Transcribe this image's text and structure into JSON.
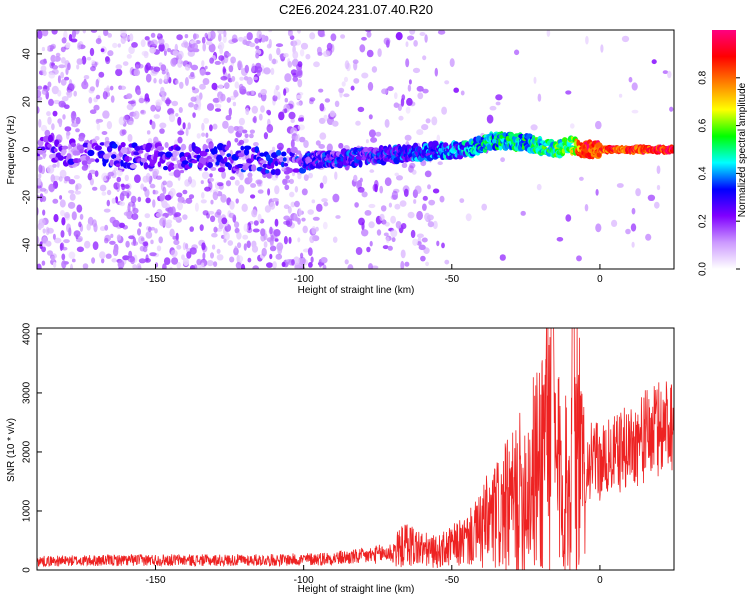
{
  "title": "C2E6.2024.231.07.40.R20",
  "chart_data": [
    {
      "type": "heatmap",
      "xlabel": "Height of straight line (km)",
      "ylabel": "Frequency (Hz)",
      "xlim": [
        -190,
        25
      ],
      "ylim": [
        -50,
        50
      ],
      "xticks": [
        -150,
        -100,
        -50,
        0
      ],
      "yticks": [
        -40,
        -20,
        0,
        20,
        40
      ],
      "xtick_labels": [
        "-150",
        "-100",
        "-50",
        "0"
      ],
      "ytick_labels": [
        "-40",
        "-20",
        "0",
        "20",
        "40"
      ],
      "colorbar": {
        "label": "Normalized spectral amplitude",
        "range": [
          0,
          1
        ],
        "ticks": [
          0.0,
          0.2,
          0.4,
          0.6,
          0.8
        ],
        "tick_labels": [
          "0.0",
          "0.2",
          "0.4",
          "0.6",
          "0.8"
        ],
        "colors": [
          "#ffffff",
          "#cc99ff",
          "#8000ff",
          "#0000ff",
          "#00ffff",
          "#00ff00",
          "#ffff00",
          "#ff8000",
          "#ff0000",
          "#ff0080"
        ]
      },
      "signal_track": [
        {
          "x": -190,
          "y": 0,
          "amplitude": 0.15
        },
        {
          "x": -165,
          "y": -2,
          "amplitude": 0.22
        },
        {
          "x": -100,
          "y": -5,
          "amplitude": 0.25
        },
        {
          "x": -80,
          "y": -3,
          "amplitude": 0.28
        },
        {
          "x": -60,
          "y": -1,
          "amplitude": 0.32
        },
        {
          "x": -45,
          "y": 0,
          "amplitude": 0.38
        },
        {
          "x": -35,
          "y": 4,
          "amplitude": 0.45
        },
        {
          "x": -25,
          "y": 3,
          "amplitude": 0.45
        },
        {
          "x": -15,
          "y": 0,
          "amplitude": 0.5
        },
        {
          "x": -10,
          "y": 2,
          "amplitude": 0.55
        },
        {
          "x": -5,
          "y": 0,
          "amplitude": 0.9
        },
        {
          "x": 0,
          "y": 0,
          "amplitude": 0.85
        },
        {
          "x": 10,
          "y": 0,
          "amplitude": 0.85
        },
        {
          "x": 25,
          "y": 0,
          "amplitude": 0.9
        }
      ]
    },
    {
      "type": "line",
      "xlabel": "Height of straight line (km)",
      "ylabel": "SNR (10 * v/v)",
      "xlim": [
        -190,
        25
      ],
      "ylim": [
        0,
        4100
      ],
      "xticks": [
        -150,
        -100,
        -50,
        0
      ],
      "yticks": [
        0,
        1000,
        2000,
        3000,
        4000
      ],
      "xtick_labels": [
        "-150",
        "-100",
        "-50",
        "0"
      ],
      "ytick_labels": [
        "0",
        "1000",
        "2000",
        "3000",
        "4000"
      ],
      "color": "#ee2222",
      "series": [
        {
          "x": [
            -190,
            -170,
            -150,
            -130,
            -110,
            -100,
            -90,
            -80,
            -70,
            -65,
            -60,
            -55,
            -50,
            -45,
            -40,
            -35,
            -30,
            -25,
            -20,
            -18,
            -15,
            -12,
            -10,
            -8,
            -6,
            -4,
            -2,
            0,
            5,
            10,
            15,
            20,
            25
          ],
          "y": [
            150,
            160,
            170,
            165,
            170,
            180,
            200,
            230,
            300,
            450,
            350,
            300,
            400,
            500,
            700,
            900,
            1100,
            1400,
            1800,
            2800,
            1800,
            1400,
            1500,
            2400,
            1500,
            1800,
            1900,
            1800,
            1950,
            2100,
            2250,
            2400,
            2600
          ]
        }
      ],
      "peaks": [
        {
          "x": -16,
          "y": 4100
        },
        {
          "x": -9,
          "y": 4100
        }
      ]
    }
  ]
}
